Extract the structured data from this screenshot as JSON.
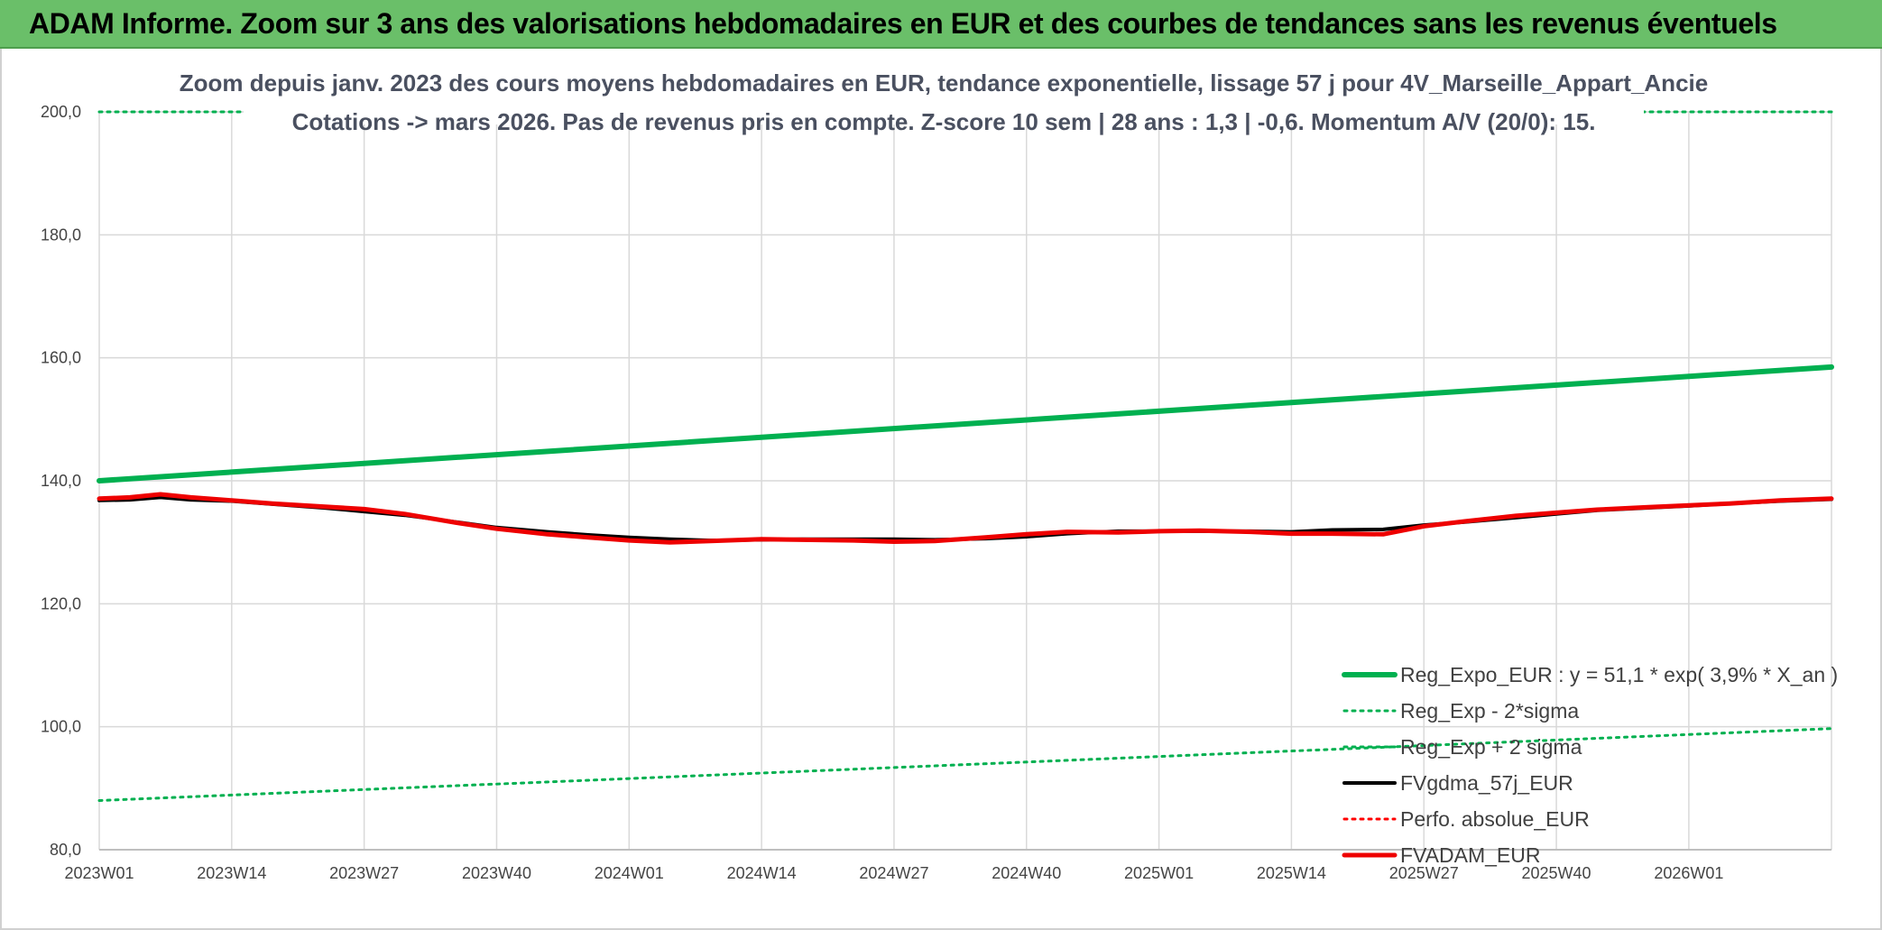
{
  "banner": {
    "title": "ADAM Informe. Zoom sur 3 ans des valorisations hebdomadaires en EUR et des courbes de tendances sans les revenus éventuels"
  },
  "chart_data": {
    "type": "line",
    "title_line1": "Zoom depuis janv. 2023 des cours moyens hebdomadaires en EUR, tendance exponentielle, lissage 57 j pour 4V_Marseille_Appart_Ancie",
    "title_line2": "Cotations -> mars 2026. Pas de revenus pris en compte. Z-score 10 sem | 28 ans : 1,3 | -0,6. Momentum A/V (20/0): 15.",
    "x_tick_labels": [
      "2023W01",
      "2023W14",
      "2023W27",
      "2023W40",
      "2024W01",
      "2024W14",
      "2024W27",
      "2024W40",
      "2025W01",
      "2025W14",
      "2025W27",
      "2025W40",
      "2026W01"
    ],
    "x_range_weeks": [
      0,
      170
    ],
    "ylim": [
      80,
      200
    ],
    "y_tick_values": [
      80,
      100,
      120,
      140,
      160,
      180,
      200
    ],
    "y_tick_labels": [
      "80,0",
      "100,0",
      "120,0",
      "140,0",
      "160,0",
      "180,0",
      "200,0"
    ],
    "grid": true,
    "legend_position": "bottom-right",
    "series": [
      {
        "name": "Reg_Expo_EUR : y = 51,1 * exp( 3,9% *  X_an )",
        "color": "#00b050",
        "style": "solid",
        "width": 6,
        "x": [
          0,
          170
        ],
        "values": [
          140.0,
          158.5
        ]
      },
      {
        "name": "Reg_Exp - 2*sigma",
        "color": "#00b050",
        "style": "dotted",
        "width": 3,
        "x": [
          0,
          170
        ],
        "values": [
          88.0,
          99.7
        ]
      },
      {
        "name": "Reg_Exp + 2 sigma",
        "color": "#00b050",
        "style": "dotted",
        "width": 3,
        "x": [
          0,
          170
        ],
        "values": [
          200.0,
          200.0
        ]
      },
      {
        "name": "FVgdma_57j_EUR",
        "color": "#000000",
        "style": "solid",
        "width": 4,
        "x": [
          0,
          3,
          6,
          9,
          13,
          17,
          22,
          26,
          30,
          35,
          39,
          44,
          48,
          52,
          56,
          60,
          65,
          69,
          74,
          78,
          82,
          87,
          91,
          95,
          100,
          104,
          108,
          113,
          117,
          121,
          126,
          130,
          134,
          139,
          143,
          147,
          152,
          156,
          160,
          165,
          170
        ],
        "values": [
          136.8,
          136.9,
          137.3,
          136.9,
          136.7,
          136.2,
          135.6,
          135.0,
          134.4,
          133.3,
          132.4,
          131.7,
          131.2,
          130.8,
          130.5,
          130.3,
          130.4,
          130.5,
          130.5,
          130.5,
          130.4,
          130.6,
          130.9,
          131.4,
          131.8,
          131.8,
          131.8,
          131.8,
          131.7,
          132.0,
          132.1,
          132.8,
          133.3,
          134.0,
          134.6,
          135.2,
          135.6,
          135.9,
          136.3,
          136.7,
          137.0
        ]
      },
      {
        "name": "Perfo. absolue_EUR",
        "color": "#ff0000",
        "style": "dotted",
        "width": 3,
        "x": [],
        "values": []
      },
      {
        "name": "FVADAM_EUR",
        "color": "#ee0000",
        "style": "solid",
        "width": 5,
        "x": [
          0,
          3,
          6,
          9,
          13,
          17,
          22,
          26,
          30,
          35,
          39,
          44,
          48,
          52,
          56,
          60,
          65,
          69,
          74,
          78,
          82,
          87,
          91,
          95,
          100,
          104,
          108,
          113,
          117,
          121,
          126,
          130,
          134,
          139,
          143,
          147,
          152,
          156,
          160,
          165,
          170
        ],
        "values": [
          137.1,
          137.3,
          137.8,
          137.3,
          136.8,
          136.3,
          135.8,
          135.4,
          134.6,
          133.2,
          132.2,
          131.3,
          130.8,
          130.3,
          130.0,
          130.2,
          130.5,
          130.4,
          130.3,
          130.1,
          130.2,
          130.8,
          131.3,
          131.7,
          131.6,
          131.8,
          131.9,
          131.7,
          131.4,
          131.4,
          131.3,
          132.6,
          133.4,
          134.3,
          134.8,
          135.3,
          135.7,
          136.0,
          136.3,
          136.8,
          137.1
        ]
      }
    ]
  }
}
